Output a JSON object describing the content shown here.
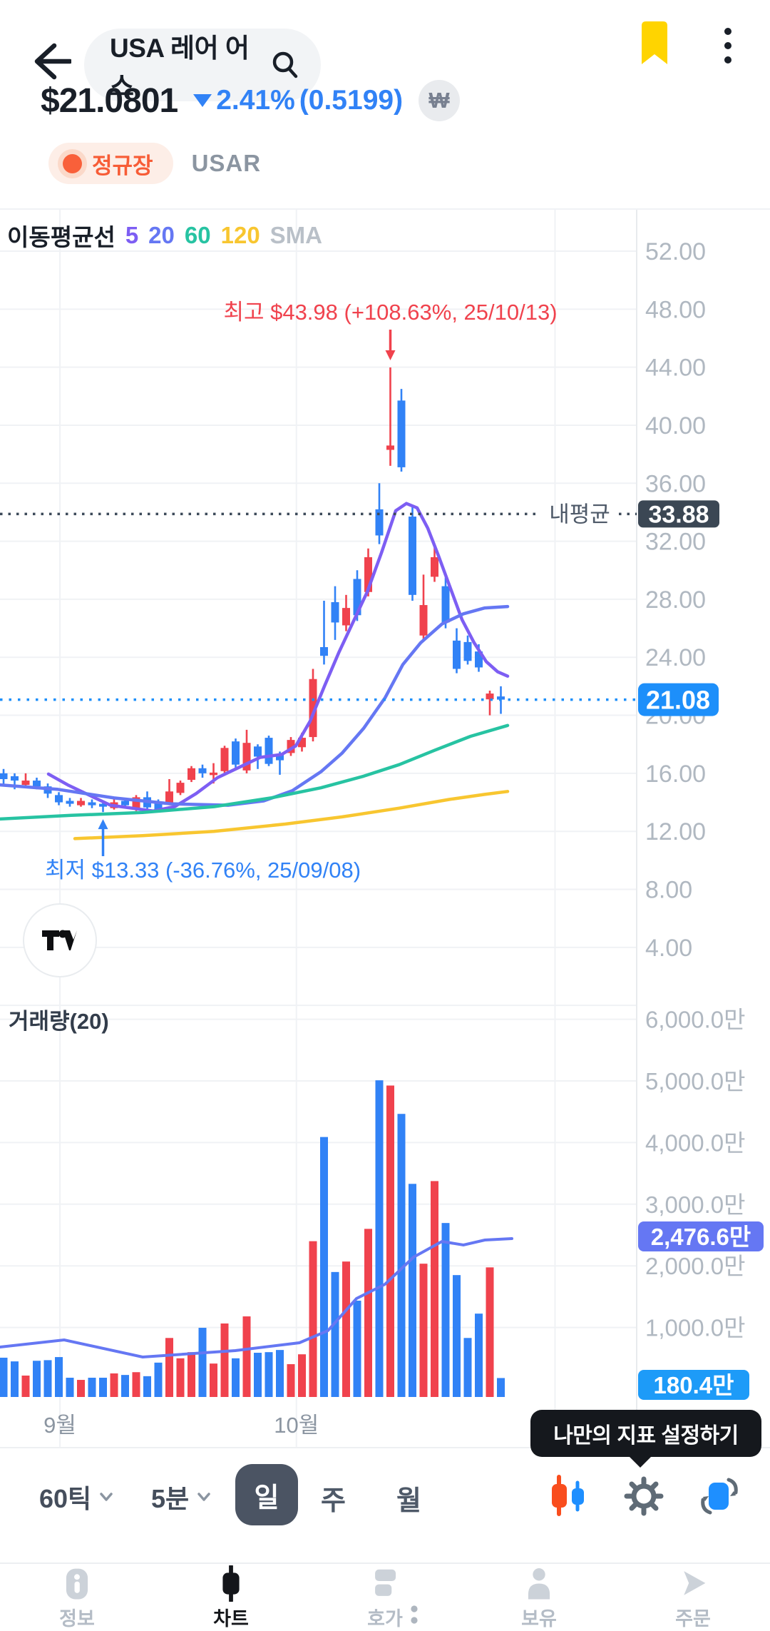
{
  "header": {
    "search_label": "USA 레어 어스",
    "bookmark_color": "#ffd400"
  },
  "price_summary": {
    "price": "$21.0801",
    "change_percent": "2.41%",
    "change_amount": "(0.5199)",
    "direction": "down",
    "currency_symbol": "₩"
  },
  "market_status": {
    "label": "정규장",
    "ticker": "USAR"
  },
  "legend": {
    "title": "이동평균선",
    "periods": [
      {
        "label": "5",
        "color": "#7d5ef3"
      },
      {
        "label": "20",
        "color": "#6577f3"
      },
      {
        "label": "60",
        "color": "#27c3a2"
      },
      {
        "label": "120",
        "color": "#f8c630"
      }
    ],
    "suffix": "SMA"
  },
  "volume_section": {
    "label": "거래량(20)"
  },
  "chart_data": {
    "type": "candlestick+volume",
    "up_color": "#f0424d",
    "down_color": "#3182f6",
    "grid_color": "#f0f2f5",
    "axis_text_color": "#b0b8c1",
    "price_axis_ticks": [
      {
        "v": 52,
        "label": "52.00"
      },
      {
        "v": 48,
        "label": "48.00"
      },
      {
        "v": 44,
        "label": "44.00"
      },
      {
        "v": 40,
        "label": "40.00"
      },
      {
        "v": 36,
        "label": "36.00"
      },
      {
        "v": 32,
        "label": "32.00"
      },
      {
        "v": 28,
        "label": "28.00"
      },
      {
        "v": 24,
        "label": "24.00"
      },
      {
        "v": 20,
        "label": "20.00"
      },
      {
        "v": 16,
        "label": "16.00"
      },
      {
        "v": 12,
        "label": "12.00"
      },
      {
        "v": 8,
        "label": "8.00"
      },
      {
        "v": 4,
        "label": "4.00"
      }
    ],
    "volume_axis_ticks": [
      {
        "v": 6000,
        "label": "6,000.0만"
      },
      {
        "v": 5000,
        "label": "5,000.0만"
      },
      {
        "v": 4000,
        "label": "4,000.0만"
      },
      {
        "v": 3000,
        "label": "3,000.0만"
      },
      {
        "v": 2000,
        "label": "2,000.0만"
      },
      {
        "v": 1000,
        "label": "1,000.0만"
      }
    ],
    "months": [
      {
        "label": "9월",
        "index": 6.1
      },
      {
        "label": "10월",
        "index": 27.5
      },
      {
        "label": "",
        "index": 50.9
      }
    ],
    "candles": [
      {
        "o": 16.0,
        "h": 16.3,
        "l": 15.2,
        "c": 15.6
      },
      {
        "o": 15.8,
        "h": 16.0,
        "l": 14.9,
        "c": 15.5
      },
      {
        "o": 15.2,
        "h": 16.0,
        "l": 15.0,
        "c": 15.5
      },
      {
        "o": 15.5,
        "h": 15.7,
        "l": 14.9,
        "c": 15.1
      },
      {
        "o": 15.1,
        "h": 15.3,
        "l": 14.3,
        "c": 14.6
      },
      {
        "o": 14.5,
        "h": 14.7,
        "l": 13.8,
        "c": 14.0
      },
      {
        "o": 14.1,
        "h": 14.3,
        "l": 13.7,
        "c": 13.9
      },
      {
        "o": 13.8,
        "h": 14.3,
        "l": 13.7,
        "c": 14.1
      },
      {
        "o": 14.0,
        "h": 14.2,
        "l": 13.6,
        "c": 13.8
      },
      {
        "o": 13.9,
        "h": 14.0,
        "l": 13.33,
        "c": 13.7
      },
      {
        "o": 13.6,
        "h": 14.2,
        "l": 13.5,
        "c": 14.0
      },
      {
        "o": 14.1,
        "h": 14.3,
        "l": 13.6,
        "c": 13.8
      },
      {
        "o": 13.5,
        "h": 14.5,
        "l": 13.4,
        "c": 14.35
      },
      {
        "o": 14.35,
        "h": 14.75,
        "l": 13.5,
        "c": 13.65
      },
      {
        "o": 14.05,
        "h": 14.2,
        "l": 13.3,
        "c": 13.45
      },
      {
        "o": 13.9,
        "h": 15.6,
        "l": 13.8,
        "c": 14.75
      },
      {
        "o": 14.65,
        "h": 15.5,
        "l": 14.5,
        "c": 15.35
      },
      {
        "o": 15.55,
        "h": 16.5,
        "l": 15.4,
        "c": 16.35
      },
      {
        "o": 16.35,
        "h": 16.6,
        "l": 15.7,
        "c": 16.0
      },
      {
        "o": 15.9,
        "h": 16.7,
        "l": 15.3,
        "c": 16.05
      },
      {
        "o": 16.15,
        "h": 17.9,
        "l": 16.0,
        "c": 17.75
      },
      {
        "o": 18.2,
        "h": 18.4,
        "l": 16.4,
        "c": 16.6
      },
      {
        "o": 16.2,
        "h": 19.0,
        "l": 16.0,
        "c": 18.1
      },
      {
        "o": 17.85,
        "h": 18.0,
        "l": 16.3,
        "c": 17.15
      },
      {
        "o": 18.45,
        "h": 18.6,
        "l": 16.5,
        "c": 16.65
      },
      {
        "o": 17.3,
        "h": 17.5,
        "l": 15.9,
        "c": 16.9
      },
      {
        "o": 17.4,
        "h": 18.5,
        "l": 17.2,
        "c": 18.3
      },
      {
        "o": 17.8,
        "h": 18.8,
        "l": 17.5,
        "c": 18.45
      },
      {
        "o": 18.5,
        "h": 23.2,
        "l": 18.2,
        "c": 22.5
      },
      {
        "o": 24.7,
        "h": 27.9,
        "l": 23.5,
        "c": 24.1
      },
      {
        "o": 27.8,
        "h": 28.9,
        "l": 25.2,
        "c": 26.4
      },
      {
        "o": 26.2,
        "h": 28.3,
        "l": 25.8,
        "c": 27.4
      },
      {
        "o": 29.4,
        "h": 30.0,
        "l": 26.5,
        "c": 26.9
      },
      {
        "o": 28.5,
        "h": 31.5,
        "l": 28.2,
        "c": 30.9
      },
      {
        "o": 34.2,
        "h": 36.0,
        "l": 31.8,
        "c": 32.4
      },
      {
        "o": 38.3,
        "h": 43.98,
        "l": 37.2,
        "c": 38.6
      },
      {
        "o": 41.7,
        "h": 42.5,
        "l": 36.8,
        "c": 37.1
      },
      {
        "o": 33.7,
        "h": 34.5,
        "l": 27.9,
        "c": 28.3
      },
      {
        "o": 25.5,
        "h": 29.7,
        "l": 25.2,
        "c": 27.6
      },
      {
        "o": 29.55,
        "h": 31.6,
        "l": 29.2,
        "c": 30.9
      },
      {
        "o": 28.9,
        "h": 29.5,
        "l": 26.0,
        "c": 26.4
      },
      {
        "o": 25.15,
        "h": 26.0,
        "l": 22.9,
        "c": 23.2
      },
      {
        "o": 25.05,
        "h": 25.5,
        "l": 23.5,
        "c": 23.75
      },
      {
        "o": 24.4,
        "h": 24.9,
        "l": 23.0,
        "c": 23.3
      },
      {
        "o": 21.1,
        "h": 21.7,
        "l": 20.0,
        "c": 21.5
      },
      {
        "o": 21.3,
        "h": 22.0,
        "l": 20.1,
        "c": 21.08
      }
    ],
    "volumes_man": [
      510,
      450,
      220,
      460,
      470,
      520,
      185,
      150,
      185,
      185,
      255,
      230,
      275,
      210,
      430,
      830,
      500,
      600,
      995,
      415,
      1065,
      500,
      1180,
      590,
      600,
      635,
      405,
      565,
      2400,
      4090,
      1900,
      2070,
      1435,
      2600,
      5010,
      4925,
      4465,
      3330,
      2035,
      3375,
      2695,
      1850,
      830,
      1225,
      1975,
      180
    ],
    "ma_lines": [
      {
        "name": "ma5",
        "color": "#7d5ef3",
        "points": [
          [
            68,
            15.95
          ],
          [
            95,
            15.2
          ],
          [
            125,
            14.5
          ],
          [
            155,
            13.8
          ],
          [
            185,
            13.6
          ],
          [
            215,
            13.4
          ],
          [
            245,
            13.7
          ],
          [
            275,
            14.6
          ],
          [
            305,
            15.7
          ],
          [
            335,
            16.4
          ],
          [
            365,
            17.1
          ],
          [
            395,
            17.3
          ],
          [
            415,
            17.9
          ],
          [
            435,
            19.6
          ],
          [
            455,
            22.0
          ],
          [
            475,
            24.3
          ],
          [
            495,
            26.4
          ],
          [
            515,
            28.5
          ],
          [
            535,
            31.2
          ],
          [
            555,
            34.1
          ],
          [
            570,
            34.6
          ],
          [
            585,
            34.3
          ],
          [
            600,
            32.9
          ],
          [
            615,
            31.0
          ],
          [
            630,
            29.0
          ],
          [
            648,
            26.6
          ],
          [
            665,
            25.0
          ],
          [
            682,
            23.7
          ],
          [
            698,
            23.0
          ],
          [
            712,
            22.7
          ]
        ]
      },
      {
        "name": "ma20",
        "color": "#6577f3",
        "points": [
          [
            0,
            15.2
          ],
          [
            80,
            14.9
          ],
          [
            160,
            14.3
          ],
          [
            240,
            13.9
          ],
          [
            320,
            13.8
          ],
          [
            370,
            14.1
          ],
          [
            410,
            14.8
          ],
          [
            450,
            16.1
          ],
          [
            480,
            17.4
          ],
          [
            510,
            19.1
          ],
          [
            540,
            21.2
          ],
          [
            565,
            23.5
          ],
          [
            590,
            25.0
          ],
          [
            620,
            26.3
          ],
          [
            650,
            27.0
          ],
          [
            680,
            27.4
          ],
          [
            712,
            27.5
          ]
        ]
      },
      {
        "name": "ma60",
        "color": "#27c3a2",
        "points": [
          [
            0,
            12.85
          ],
          [
            100,
            13.1
          ],
          [
            200,
            13.3
          ],
          [
            300,
            13.7
          ],
          [
            380,
            14.3
          ],
          [
            450,
            15.0
          ],
          [
            510,
            15.8
          ],
          [
            560,
            16.6
          ],
          [
            610,
            17.6
          ],
          [
            660,
            18.55
          ],
          [
            712,
            19.3
          ]
        ]
      },
      {
        "name": "ma120",
        "color": "#f8c630",
        "points": [
          [
            105,
            11.5
          ],
          [
            200,
            11.7
          ],
          [
            300,
            12.0
          ],
          [
            400,
            12.5
          ],
          [
            480,
            13.0
          ],
          [
            560,
            13.6
          ],
          [
            630,
            14.2
          ],
          [
            680,
            14.55
          ],
          [
            712,
            14.75
          ]
        ]
      }
    ],
    "volume_ma": {
      "color": "#6577f3",
      "points": [
        [
          0,
          683
        ],
        [
          90,
          799
        ],
        [
          200,
          521
        ],
        [
          330,
          625
        ],
        [
          420,
          752
        ],
        [
          460,
          949
        ],
        [
          500,
          1470
        ],
        [
          540,
          1701
        ],
        [
          580,
          2141
        ],
        [
          620,
          2396
        ],
        [
          650,
          2338
        ],
        [
          680,
          2419
        ],
        [
          718,
          2442
        ]
      ]
    },
    "annotations": {
      "high": {
        "text": "최고 $43.98 (+108.63%, 25/10/13)",
        "candle_index": 36,
        "color": "#f0424d"
      },
      "low": {
        "text": "최저 $13.33 (-36.76%, 25/09/08)",
        "candle_index": 10,
        "color": "#3182f6"
      }
    },
    "avg_line": {
      "label": "내평균",
      "value": 33.88,
      "display": "33.88",
      "badge_color": "#3b4754",
      "line_color": "#3c4a59"
    },
    "current_price": {
      "value": 21.08,
      "display": "21.08",
      "badge_color": "#1d8ffa"
    },
    "volume_ma_badge": {
      "value": 2476.6,
      "display": "2,476.6만",
      "badge_color": "#6577f3"
    },
    "volume_last_badge": {
      "value": 180.4,
      "display": "180.4만",
      "badge_color": "#1d9bf8"
    }
  },
  "controls": {
    "tick": "60틱",
    "minute": "5분",
    "day": "일",
    "week": "주",
    "month": "월",
    "selected": "일"
  },
  "tooltip": {
    "text": "나만의 지표 설정하기"
  },
  "nav": {
    "items": [
      {
        "label": "정보",
        "active": false
      },
      {
        "label": "차트",
        "active": true
      },
      {
        "label": "호가",
        "active": false,
        "badge": true
      },
      {
        "label": "보유",
        "active": false
      },
      {
        "label": "주문",
        "active": false
      }
    ]
  }
}
